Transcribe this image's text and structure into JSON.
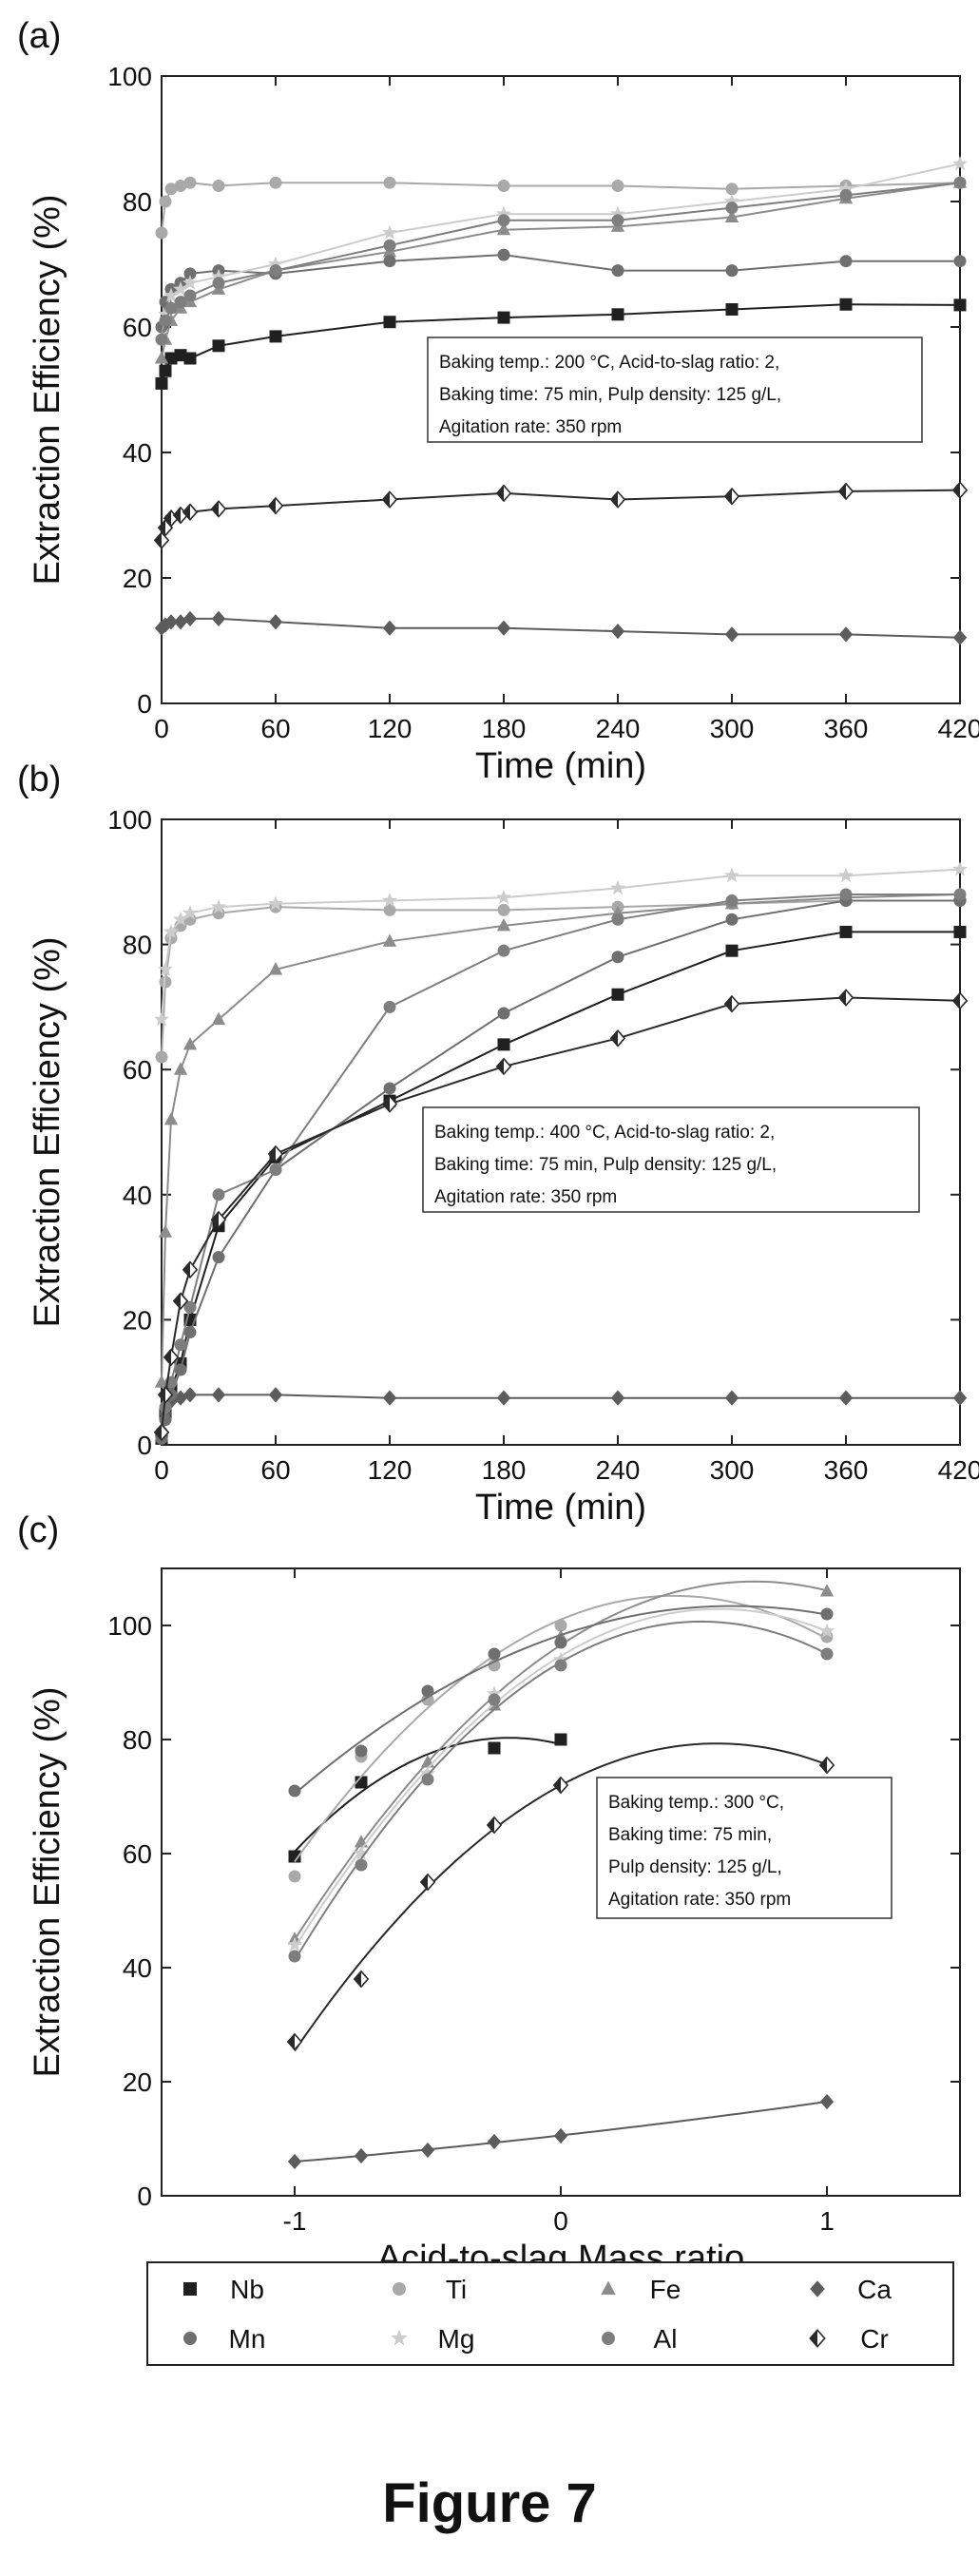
{
  "figure_caption": "Figure 7",
  "colors": {
    "Nb": "#202020",
    "Ti": "#a9a9a9",
    "Fe": "#8c8c8c",
    "Ca": "#5c5c5c",
    "Mn": "#6f6f6f",
    "Mg": "#cccccc",
    "Al": "#7e7e7e",
    "Cr": "#2a2a2a"
  },
  "markers": {
    "Nb": "square",
    "Ti": "circle",
    "Fe": "triangle",
    "Ca": "diamond",
    "Mn": "circle",
    "Mg": "star",
    "Al": "circle",
    "Cr": "half-diamond"
  },
  "legend": {
    "entries": [
      "Nb",
      "Ti",
      "Fe",
      "Ca",
      "Mn",
      "Mg",
      "Al",
      "Cr"
    ],
    "placement": "bottom"
  },
  "chart_data": [
    {
      "panel_label": "(a)",
      "type": "line",
      "xlabel": "Time (min)",
      "ylabel": "Extraction Efficiency (%)",
      "xlim": [
        0,
        420
      ],
      "ylim": [
        0,
        100
      ],
      "xticks": [
        0,
        60,
        120,
        180,
        240,
        300,
        360,
        420
      ],
      "yticks": [
        0,
        20,
        40,
        60,
        80,
        100
      ],
      "annotation": [
        "Baking temp.: 200 °C, Acid-to-slag ratio: 2,",
        "Baking time: 75 min, Pulp density: 125 g/L,",
        "Agitation rate: 350 rpm"
      ],
      "series": [
        {
          "name": "Nb",
          "x": [
            0,
            2,
            5,
            10,
            15,
            30,
            60,
            120,
            180,
            240,
            300,
            360,
            420
          ],
          "y": [
            51,
            53,
            55,
            55.5,
            55,
            57,
            58.5,
            60.8,
            61.5,
            62,
            62.8,
            63.6,
            63.5
          ]
        },
        {
          "name": "Ti",
          "x": [
            0,
            2,
            5,
            10,
            15,
            30,
            60,
            120,
            180,
            240,
            300,
            360,
            420
          ],
          "y": [
            75,
            80,
            82,
            82.5,
            83,
            82.5,
            83,
            83,
            82.5,
            82.5,
            82,
            82.5,
            83
          ]
        },
        {
          "name": "Fe",
          "x": [
            0,
            2,
            5,
            10,
            15,
            30,
            60,
            120,
            180,
            240,
            300,
            360,
            420
          ],
          "y": [
            55,
            58,
            61,
            63,
            64,
            66,
            69,
            72,
            75.5,
            76,
            77.5,
            80.5,
            83
          ]
        },
        {
          "name": "Ca",
          "x": [
            0,
            2,
            5,
            10,
            15,
            30,
            60,
            120,
            180,
            240,
            300,
            360,
            420
          ],
          "y": [
            12,
            12.5,
            13,
            13,
            13.5,
            13.5,
            13,
            12,
            12,
            11.5,
            11,
            11,
            10.5
          ]
        },
        {
          "name": "Mn",
          "x": [
            0,
            2,
            5,
            10,
            15,
            30,
            60,
            120,
            180,
            240,
            300,
            360,
            420
          ],
          "y": [
            60,
            64,
            66,
            67,
            68.5,
            69,
            68.5,
            70.5,
            71.5,
            69,
            69,
            70.5,
            70.5
          ]
        },
        {
          "name": "Mg",
          "x": [
            0,
            2,
            5,
            10,
            15,
            30,
            60,
            120,
            180,
            240,
            300,
            360,
            420
          ],
          "y": [
            58,
            62,
            65,
            66,
            67,
            68,
            70,
            75,
            78,
            78,
            80,
            82,
            86
          ]
        },
        {
          "name": "Al",
          "x": [
            0,
            2,
            5,
            10,
            15,
            30,
            60,
            120,
            180,
            240,
            300,
            360,
            420
          ],
          "y": [
            58,
            61,
            63,
            64,
            65,
            67,
            69,
            73,
            77,
            77,
            79,
            81,
            83
          ]
        },
        {
          "name": "Cr",
          "x": [
            0,
            2,
            5,
            10,
            15,
            30,
            60,
            120,
            180,
            240,
            300,
            360,
            420
          ],
          "y": [
            26,
            28,
            29.5,
            30,
            30.5,
            31,
            31.5,
            32.5,
            33.5,
            32.5,
            33,
            33.8,
            34
          ]
        }
      ]
    },
    {
      "panel_label": "(b)",
      "type": "line",
      "xlabel": "Time (min)",
      "ylabel": "Extraction Efficiency (%)",
      "xlim": [
        0,
        420
      ],
      "ylim": [
        0,
        100
      ],
      "xticks": [
        0,
        60,
        120,
        180,
        240,
        300,
        360,
        420
      ],
      "yticks": [
        0,
        20,
        40,
        60,
        80,
        100
      ],
      "annotation": [
        "Baking temp.: 400 °C, Acid-to-slag ratio: 2,",
        "Baking time: 75 min, Pulp density: 125 g/L,",
        "Agitation rate: 350 rpm"
      ],
      "series": [
        {
          "name": "Nb",
          "x": [
            0,
            2,
            5,
            10,
            15,
            30,
            60,
            120,
            180,
            240,
            300,
            360,
            420
          ],
          "y": [
            1,
            5,
            9,
            13,
            20,
            35,
            46,
            55,
            64,
            72,
            79,
            82,
            82
          ]
        },
        {
          "name": "Ti",
          "x": [
            0,
            2,
            5,
            10,
            15,
            30,
            60,
            120,
            180,
            240,
            300,
            360,
            420
          ],
          "y": [
            62,
            74,
            81,
            83,
            84,
            85,
            86,
            85.5,
            85.5,
            86,
            86.5,
            87,
            87
          ]
        },
        {
          "name": "Fe",
          "x": [
            0,
            2,
            5,
            10,
            15,
            30,
            60,
            120,
            180,
            240,
            300,
            360,
            420
          ],
          "y": [
            10,
            34,
            52,
            60,
            64,
            68,
            76,
            80.5,
            83,
            85,
            86.5,
            87.5,
            88
          ]
        },
        {
          "name": "Ca",
          "x": [
            0,
            2,
            5,
            10,
            15,
            30,
            60,
            120,
            180,
            240,
            300,
            360,
            420
          ],
          "y": [
            2,
            5,
            7,
            7.5,
            8,
            8,
            8,
            7.5,
            7.5,
            7.5,
            7.5,
            7.5,
            7.5
          ]
        },
        {
          "name": "Mn",
          "x": [
            0,
            2,
            5,
            10,
            15,
            30,
            60,
            120,
            180,
            240,
            300,
            360,
            420
          ],
          "y": [
            1,
            4,
            8,
            12,
            18,
            30,
            44,
            57,
            69,
            78,
            84,
            87,
            87
          ]
        },
        {
          "name": "Mg",
          "x": [
            0,
            2,
            5,
            10,
            15,
            30,
            60,
            120,
            180,
            240,
            300,
            360,
            420
          ],
          "y": [
            68,
            76,
            82,
            84,
            85,
            86,
            86.5,
            87,
            87.5,
            89,
            91,
            91,
            92
          ]
        },
        {
          "name": "Al",
          "x": [
            0,
            2,
            5,
            10,
            15,
            30,
            60,
            120,
            180,
            240,
            300,
            360,
            420
          ],
          "y": [
            2,
            6,
            10,
            16,
            22,
            40,
            44,
            70,
            79,
            84,
            87,
            88,
            88
          ]
        },
        {
          "name": "Cr",
          "x": [
            0,
            2,
            5,
            10,
            15,
            30,
            60,
            120,
            180,
            240,
            300,
            360,
            420
          ],
          "y": [
            2,
            8,
            14,
            23,
            28,
            36,
            46.5,
            54.5,
            60.5,
            65,
            70.5,
            71.5,
            71
          ]
        }
      ]
    },
    {
      "panel_label": "(c)",
      "type": "scatter",
      "fit": "quadratic",
      "xlabel": "Acid-to-slag Mass ratio",
      "ylabel": "Extraction Efficiency (%)",
      "xlim": [
        -1.5,
        1.5
      ],
      "ylim": [
        0,
        110
      ],
      "xticks": [
        -1,
        0,
        1
      ],
      "yticks": [
        0,
        20,
        40,
        60,
        80,
        100
      ],
      "annotation": [
        "Baking temp.: 300 °C,",
        "Baking time: 75 min,",
        "Pulp density: 125 g/L,",
        "Agitation rate: 350 rpm"
      ],
      "series": [
        {
          "name": "Nb",
          "x": [
            -1,
            -0.75,
            -0.25,
            0
          ],
          "y": [
            59.5,
            72.5,
            78.5,
            80
          ]
        },
        {
          "name": "Ti",
          "x": [
            -1,
            -0.75,
            -0.5,
            -0.25,
            0,
            1
          ],
          "y": [
            56,
            77,
            87,
            93,
            100,
            98
          ]
        },
        {
          "name": "Fe",
          "x": [
            -1,
            -0.75,
            -0.5,
            -0.25,
            0,
            1
          ],
          "y": [
            45,
            62,
            76,
            86,
            98,
            106
          ]
        },
        {
          "name": "Ca",
          "x": [
            -1,
            -0.75,
            -0.5,
            -0.25,
            0,
            1
          ],
          "y": [
            6,
            7,
            8,
            9.5,
            10.5,
            16.5
          ]
        },
        {
          "name": "Mn",
          "x": [
            -1,
            -0.75,
            -0.5,
            -0.25,
            0,
            1
          ],
          "y": [
            71,
            78,
            88.5,
            95,
            97,
            102
          ]
        },
        {
          "name": "Mg",
          "x": [
            -1,
            -0.75,
            -0.5,
            -0.25,
            0,
            1
          ],
          "y": [
            44,
            60,
            74,
            88,
            94,
            99
          ]
        },
        {
          "name": "Al",
          "x": [
            -1,
            -0.75,
            -0.5,
            -0.25,
            0,
            1
          ],
          "y": [
            42,
            58,
            73,
            87,
            93,
            95
          ]
        },
        {
          "name": "Cr",
          "x": [
            -1,
            -0.75,
            -0.5,
            -0.25,
            0,
            1
          ],
          "y": [
            27,
            38,
            55,
            65,
            72,
            75.5
          ]
        }
      ]
    }
  ]
}
